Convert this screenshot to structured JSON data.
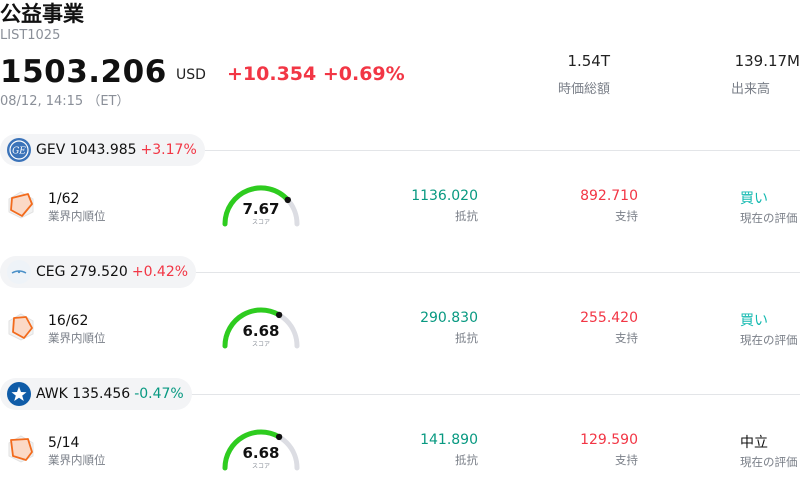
{
  "header": {
    "title": "公益事業",
    "code": "LIST1025",
    "price": "1503.206",
    "currency": "USD",
    "change": "+10.354 +0.69%",
    "timestamp": "08/12, 14:15 （ET）",
    "market_cap_value": "1.54T",
    "market_cap_label": "時価総額",
    "volume_value": "139.17M",
    "volume_label": "出来高"
  },
  "labels": {
    "rank": "業界内順位",
    "score": "スコア",
    "resistance": "抵抗",
    "support": "支持",
    "rating": "現在の評価"
  },
  "colors": {
    "up": "#f23645",
    "down": "#089981",
    "gauge_fill": "#2ecc1f",
    "gauge_track": "#dcdde3",
    "buy": "#13b9b0"
  },
  "stocks": [
    {
      "ticker": "GEV",
      "price": "1043.985",
      "change": "+3.17%",
      "direction": "up",
      "logo_icon": "ge-logo-icon",
      "rank": "1/62",
      "score": "7.67",
      "score_fraction": 0.767,
      "resistance": "1136.020",
      "support": "892.710",
      "rating": "買い",
      "rating_type": "buy"
    },
    {
      "ticker": "CEG",
      "price": "279.520",
      "change": "+0.42%",
      "direction": "up",
      "logo_icon": "constellation-logo-icon",
      "rank": "16/62",
      "score": "6.68",
      "score_fraction": 0.668,
      "resistance": "290.830",
      "support": "255.420",
      "rating": "買い",
      "rating_type": "buy"
    },
    {
      "ticker": "AWK",
      "price": "135.456",
      "change": "-0.47%",
      "direction": "down",
      "logo_icon": "star-logo-icon",
      "rank": "5/14",
      "score": "6.68",
      "score_fraction": 0.668,
      "resistance": "141.890",
      "support": "129.590",
      "rating": "中立",
      "rating_type": "neutral"
    }
  ]
}
